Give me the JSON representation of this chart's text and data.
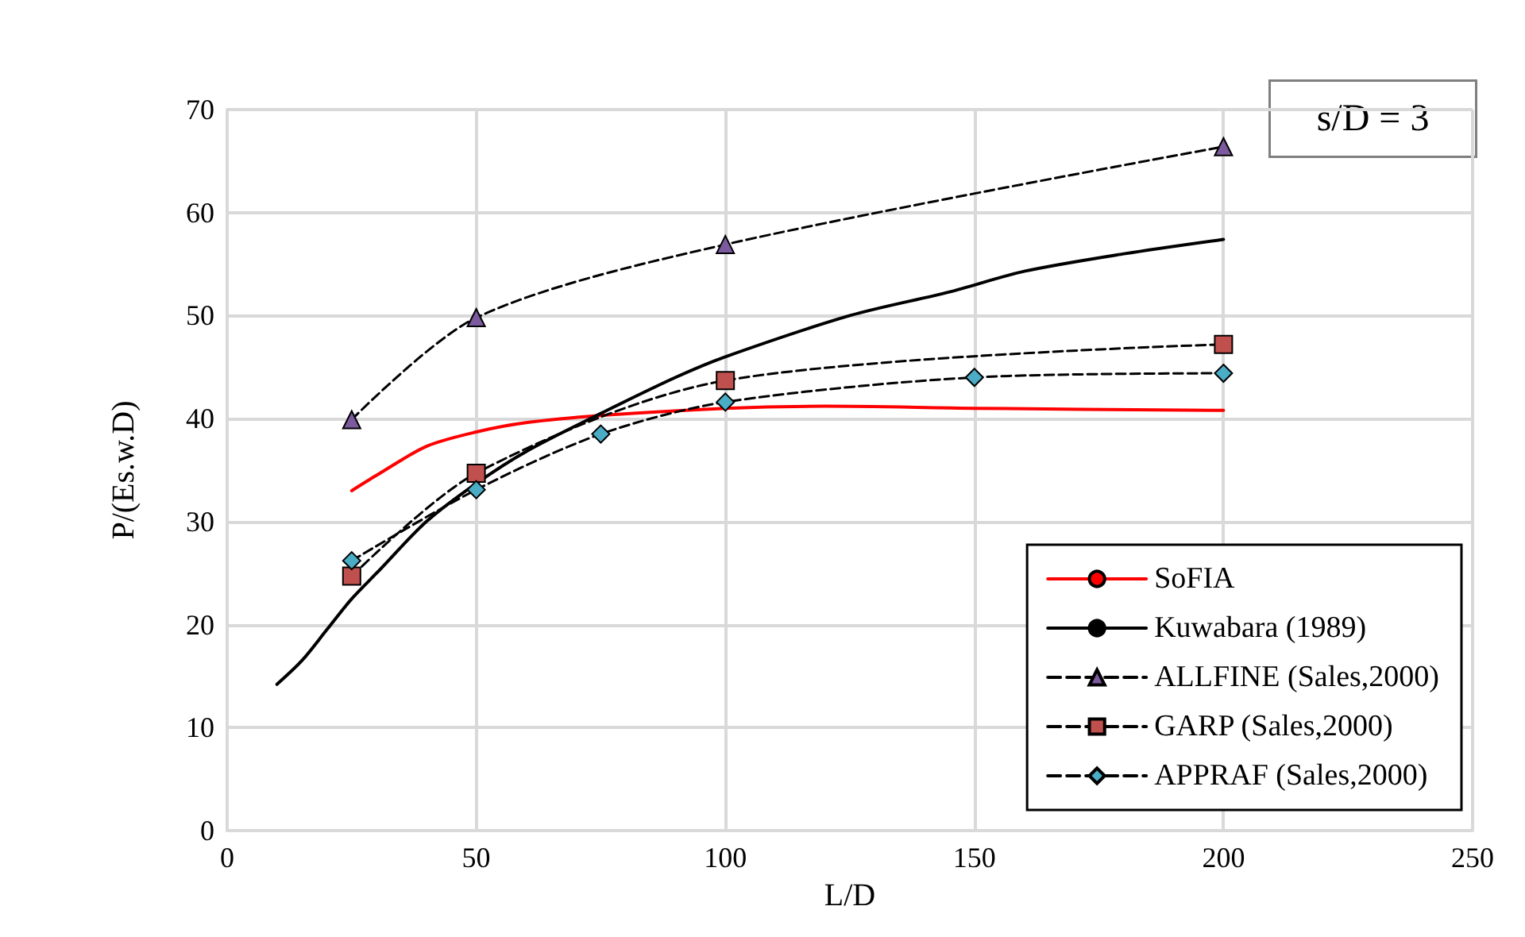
{
  "chart_data": {
    "type": "line",
    "xlabel": "L/D",
    "ylabel": "P/(Es.w.D)",
    "xlim": [
      0,
      250
    ],
    "xticks": [
      0,
      50,
      100,
      150,
      200,
      250
    ],
    "ylim": [
      0,
      70
    ],
    "yticks": [
      0,
      10,
      20,
      30,
      40,
      50,
      60,
      70
    ],
    "grid": true,
    "legend": "bottom right",
    "annotations": [
      "s/D = 3"
    ],
    "series": [
      {
        "name": "SoFIA",
        "color": "#ff0000",
        "marker": "none",
        "line_style": "solid",
        "x": [
          25,
          30,
          40,
          50,
          60,
          75,
          100,
          120,
          150,
          200
        ],
        "values": [
          33,
          34.5,
          37.3,
          38.7,
          39.6,
          40.3,
          41,
          41.2,
          41,
          40.8
        ]
      },
      {
        "name": "Kuwabara (1989)",
        "color": "#000000",
        "marker": "none",
        "line_style": "solid",
        "x": [
          10,
          15,
          20,
          25,
          30,
          40,
          50,
          60,
          75,
          90,
          100,
          125,
          145,
          160,
          180,
          200
        ],
        "values": [
          14.2,
          16.5,
          19.5,
          22.5,
          25,
          30,
          33.7,
          36.8,
          40.5,
          44,
          46,
          50,
          52.3,
          54.3,
          56,
          57.4
        ]
      },
      {
        "name": "ALLFINE (Sales,2000)",
        "color": "#7b5a9e",
        "marker": "triangle",
        "line_style": "dashed",
        "x": [
          25,
          50,
          100,
          200
        ],
        "values": [
          39.9,
          49.8,
          56.9,
          66.4
        ]
      },
      {
        "name": "GARP (Sales,2000)",
        "color": "#c0504d",
        "marker": "square",
        "line_style": "dashed",
        "x": [
          25,
          50,
          100,
          200
        ],
        "values": [
          24.7,
          34.7,
          43.7,
          47.2
        ]
      },
      {
        "name": "APPRAF (Sales,2000)",
        "color": "#4bacc6",
        "marker": "diamond",
        "line_style": "dashed",
        "x": [
          25,
          50,
          75,
          100,
          150,
          200
        ],
        "values": [
          26.2,
          33.1,
          38.5,
          41.6,
          44,
          44.4
        ]
      }
    ]
  }
}
